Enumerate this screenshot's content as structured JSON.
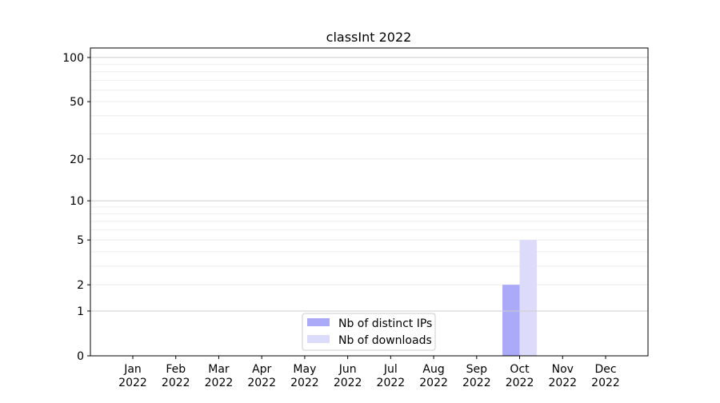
{
  "chart_data": {
    "type": "bar",
    "title": "classInt 2022",
    "xlabel": "",
    "ylabel": "",
    "categories": [
      "Jan\n2022",
      "Feb\n2022",
      "Mar\n2022",
      "Apr\n2022",
      "May\n2022",
      "Jun\n2022",
      "Jul\n2022",
      "Aug\n2022",
      "Sep\n2022",
      "Oct\n2022",
      "Nov\n2022",
      "Dec\n2022"
    ],
    "series": [
      {
        "name": "Nb of distinct IPs",
        "color": "#aaaaf8",
        "values": [
          0,
          0,
          0,
          0,
          0,
          0,
          0,
          0,
          0,
          2,
          0,
          0
        ]
      },
      {
        "name": "Nb of downloads",
        "color": "#dcdcfa",
        "values": [
          0,
          0,
          0,
          0,
          0,
          0,
          0,
          0,
          0,
          5,
          0,
          0
        ]
      }
    ],
    "yscale": "log(1+y)",
    "ylim": [
      0,
      116
    ],
    "yticks": [
      0,
      1,
      2,
      5,
      10,
      20,
      50,
      100
    ],
    "grid": true,
    "legend": "bottom-center"
  }
}
